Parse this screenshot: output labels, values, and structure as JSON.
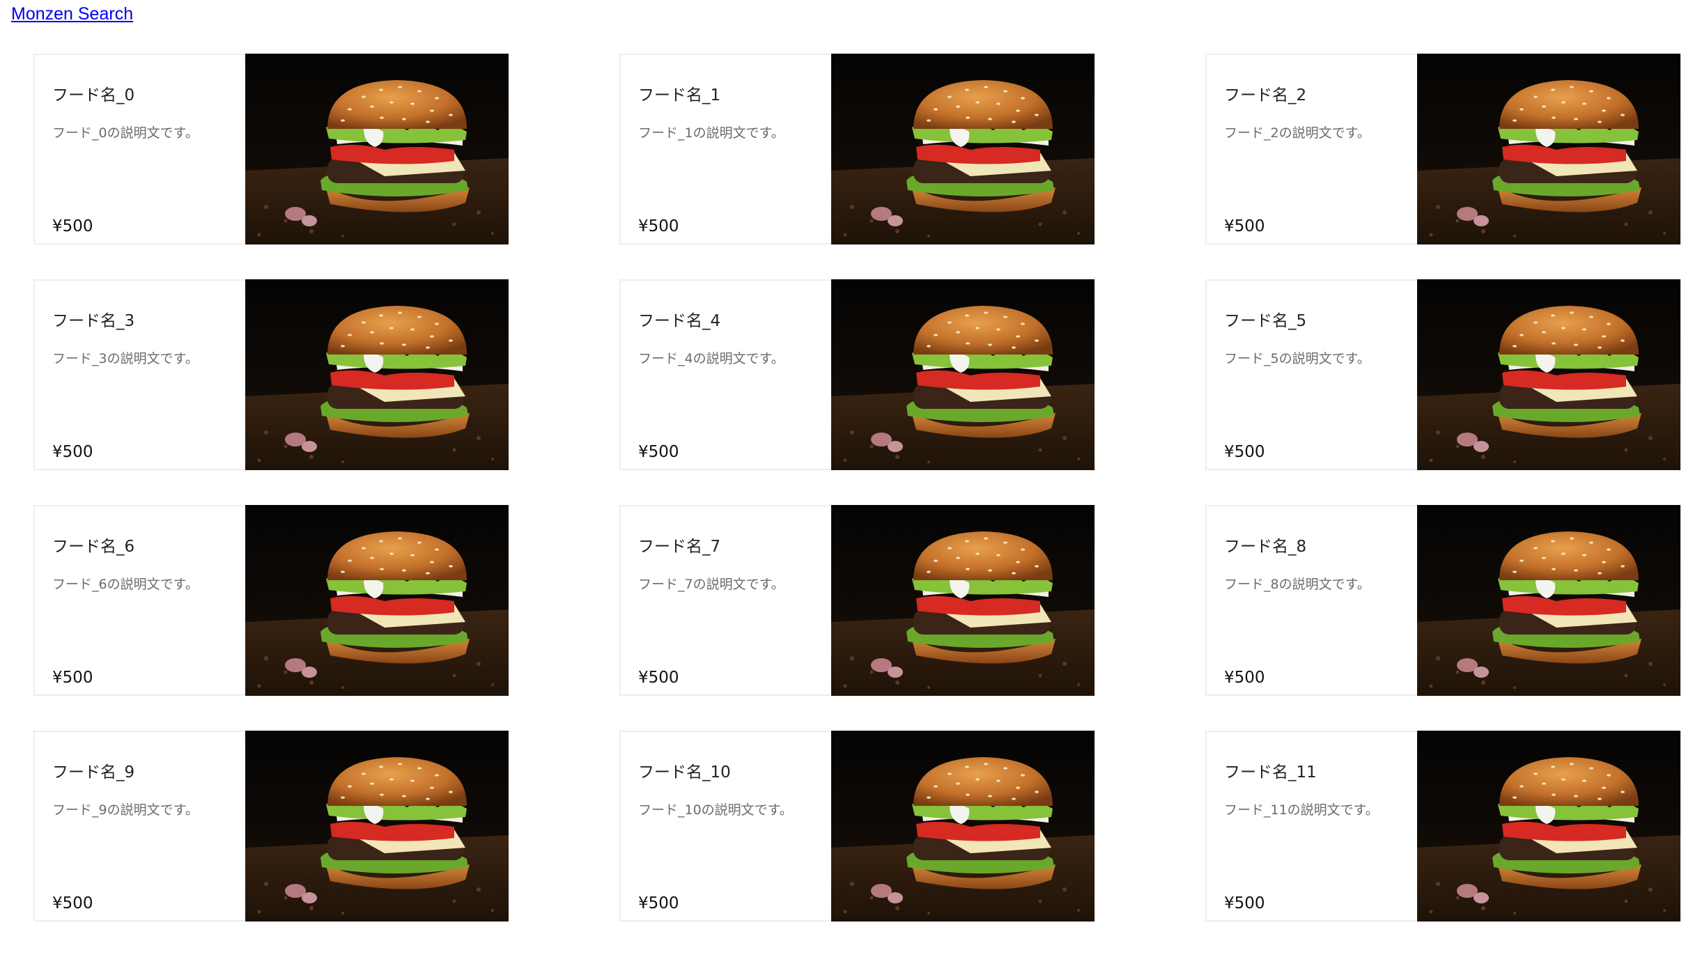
{
  "header": {
    "link_label": "Monzen Search"
  },
  "items": [
    {
      "name": "フード名_0",
      "description": "フード_0の説明文です。",
      "price": "¥500"
    },
    {
      "name": "フード名_1",
      "description": "フード_1の説明文です。",
      "price": "¥500"
    },
    {
      "name": "フード名_2",
      "description": "フード_2の説明文です。",
      "price": "¥500"
    },
    {
      "name": "フード名_3",
      "description": "フード_3の説明文です。",
      "price": "¥500"
    },
    {
      "name": "フード名_4",
      "description": "フード_4の説明文です。",
      "price": "¥500"
    },
    {
      "name": "フード名_5",
      "description": "フード_5の説明文です。",
      "price": "¥500"
    },
    {
      "name": "フード名_6",
      "description": "フード_6の説明文です。",
      "price": "¥500"
    },
    {
      "name": "フード名_7",
      "description": "フード_7の説明文です。",
      "price": "¥500"
    },
    {
      "name": "フード名_8",
      "description": "フード_8の説明文です。",
      "price": "¥500"
    },
    {
      "name": "フード名_9",
      "description": "フード_9の説明文です。",
      "price": "¥500"
    },
    {
      "name": "フード名_10",
      "description": "フード_10の説明文です。",
      "price": "¥500"
    },
    {
      "name": "フード名_11",
      "description": "フード_11の説明文です。",
      "price": "¥500"
    }
  ],
  "image_subject": "burger-photo",
  "colors": {
    "link": "#0000ee",
    "card_border": "#eeeeee",
    "description_text": "#6b6b6b"
  }
}
